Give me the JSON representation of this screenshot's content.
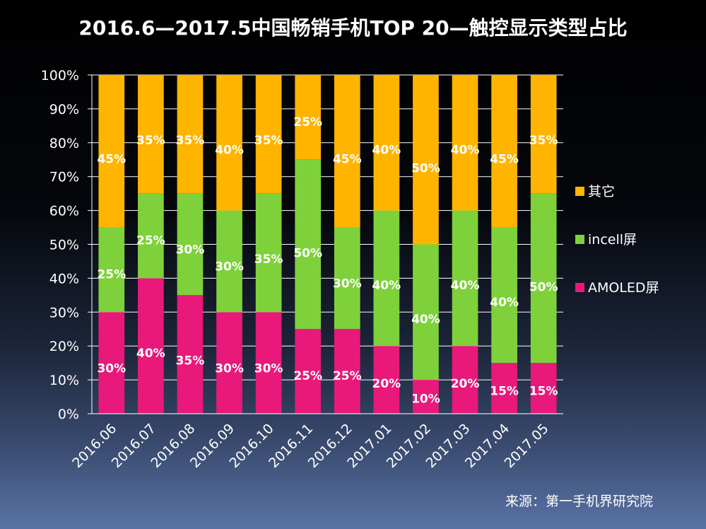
{
  "chart_data": {
    "type": "bar",
    "stacked": true,
    "title": "2016.6—2017.5中国畅销手机TOP 20—触控显示类型占比",
    "categories": [
      "2016.06",
      "2016.07",
      "2016.08",
      "2016.09",
      "2016.10",
      "2016.11",
      "2016.12",
      "2017.01",
      "2017.02",
      "2017.03",
      "2017.04",
      "2017.05"
    ],
    "series": [
      {
        "name": "AMOLED屏",
        "color": "#e8197a",
        "values": [
          30,
          40,
          35,
          30,
          30,
          25,
          25,
          20,
          10,
          20,
          15,
          15
        ]
      },
      {
        "name": "incell屏",
        "color": "#7ed13a",
        "values": [
          25,
          25,
          30,
          30,
          35,
          50,
          30,
          40,
          40,
          40,
          40,
          50
        ]
      },
      {
        "name": "其它",
        "color": "#ffb400",
        "values": [
          45,
          35,
          35,
          40,
          35,
          25,
          45,
          40,
          50,
          40,
          45,
          35
        ]
      }
    ],
    "legend_order": [
      "其它",
      "incell屏",
      "AMOLED屏"
    ],
    "ylim": [
      0,
      100
    ],
    "yticks": [
      "0%",
      "10%",
      "20%",
      "30%",
      "40%",
      "50%",
      "60%",
      "70%",
      "80%",
      "90%",
      "100%"
    ],
    "grid": true,
    "legend_position": "right",
    "data_label_suffix": "%"
  },
  "source": "来源：第一手机界研究院"
}
